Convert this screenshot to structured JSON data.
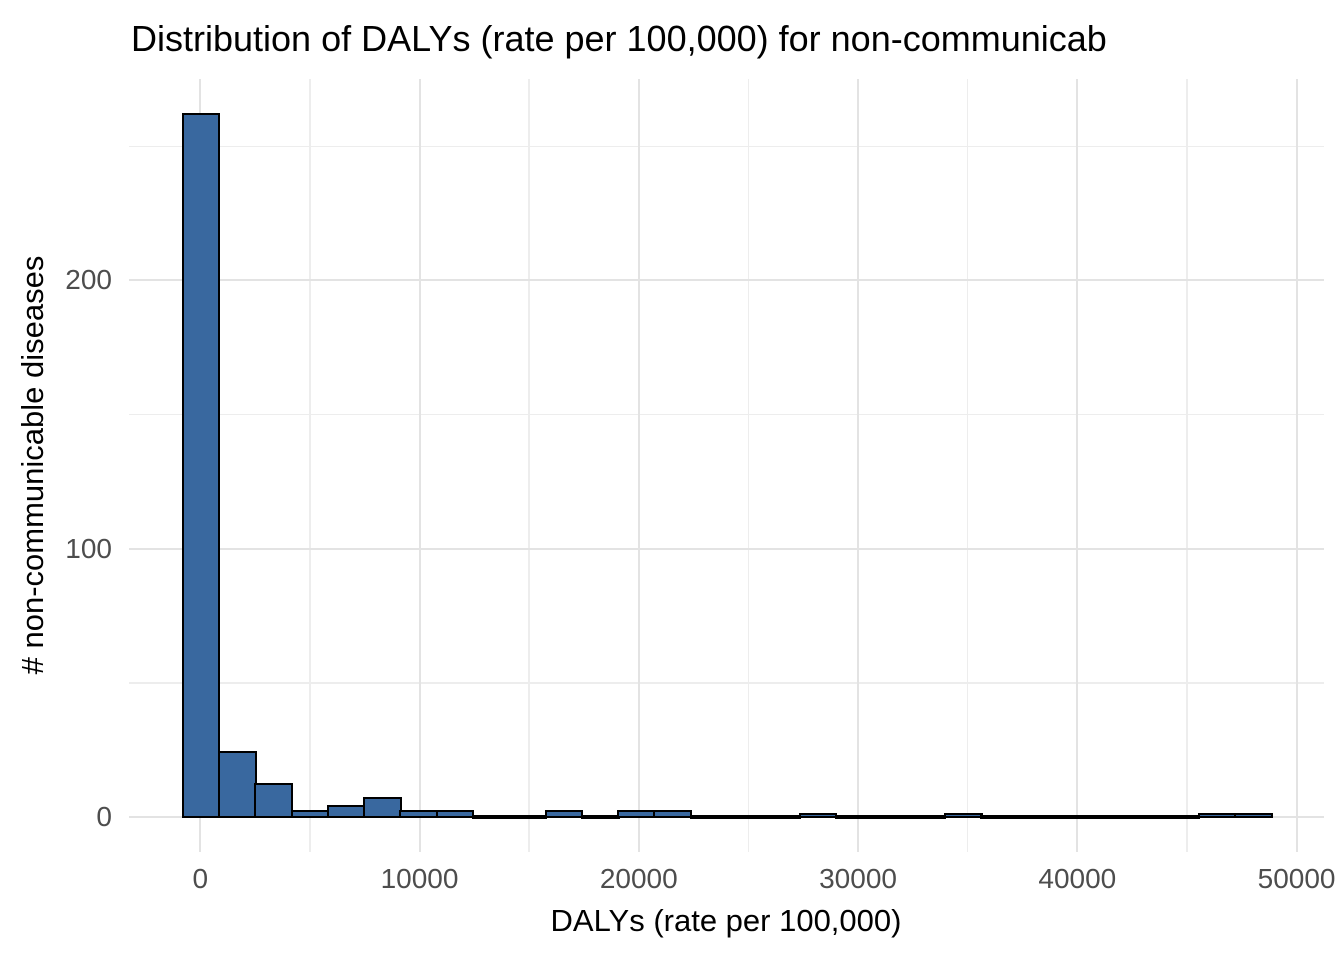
{
  "title": "Distribution of DALYs (rate per 100,000) for non-communicab",
  "chart_data": {
    "type": "bar",
    "subtype": "histogram",
    "title": "Distribution of DALYs (rate per 100,000) for non-communicab",
    "xlabel": "DALYs (rate per 100,000)",
    "ylabel": "# non-communicable diseases",
    "x_tick_labels": [
      "0",
      "10000",
      "20000",
      "30000",
      "40000",
      "50000"
    ],
    "x_tick_values": [
      0,
      10000,
      20000,
      30000,
      40000,
      50000
    ],
    "x_minor_tick_values": [
      5000,
      15000,
      25000,
      35000,
      45000
    ],
    "y_tick_labels": [
      "0",
      "100",
      "200"
    ],
    "y_tick_values": [
      0,
      100,
      200
    ],
    "y_minor_tick_values": [
      50,
      150,
      250
    ],
    "xlim": [
      -3250,
      51250
    ],
    "ylim": [
      -13.1,
      275.1
    ],
    "grid": true,
    "legend": false,
    "bin_width": 1655,
    "first_bin_start": -790,
    "bin_counts": [
      262,
      24,
      12,
      2,
      4,
      7,
      2,
      2,
      0,
      0,
      2,
      0,
      2,
      2,
      0,
      0,
      0,
      1,
      0,
      0,
      0,
      1,
      0,
      0,
      0,
      0,
      0,
      0,
      1,
      1
    ],
    "colors": {
      "bar_fill": "#39689F",
      "bar_outline": "#000000",
      "grid_major": "#e3e3e3",
      "grid_minor": "#ededed",
      "tick_label": "#4d4d4d",
      "text": "#000000",
      "background": "#ffffff"
    }
  }
}
